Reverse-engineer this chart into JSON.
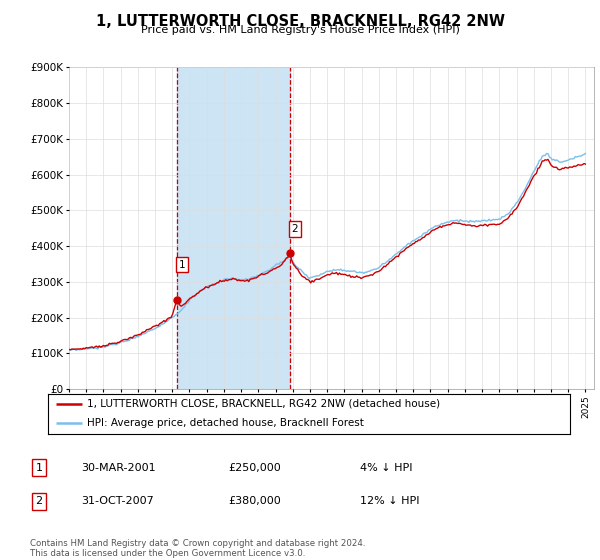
{
  "title": "1, LUTTERWORTH CLOSE, BRACKNELL, RG42 2NW",
  "subtitle": "Price paid vs. HM Land Registry's House Price Index (HPI)",
  "ylim": [
    0,
    900000
  ],
  "xlim_start": 1995.0,
  "xlim_end": 2025.5,
  "sale1_date": 2001.25,
  "sale1_price": 250000,
  "sale1_label": "1",
  "sale2_date": 2007.83,
  "sale2_price": 380000,
  "sale2_label": "2",
  "hpi_color": "#7bbfea",
  "price_color": "#cc0000",
  "sale_marker_color": "#cc0000",
  "dashed_line_color": "#cc0000",
  "highlight_fill": "#cde4f5",
  "background_color": "#ffffff",
  "grid_color": "#dddddd",
  "legend_label_red": "1, LUTTERWORTH CLOSE, BRACKNELL, RG42 2NW (detached house)",
  "legend_label_blue": "HPI: Average price, detached house, Bracknell Forest",
  "table_rows": [
    {
      "num": "1",
      "date": "30-MAR-2001",
      "price": "£250,000",
      "note": "4% ↓ HPI"
    },
    {
      "num": "2",
      "date": "31-OCT-2007",
      "price": "£380,000",
      "note": "12% ↓ HPI"
    }
  ],
  "footnote": "Contains HM Land Registry data © Crown copyright and database right 2024.\nThis data is licensed under the Open Government Licence v3.0.",
  "hpi_keypoints": [
    [
      1995.0,
      108000
    ],
    [
      1996.0,
      112000
    ],
    [
      1997.0,
      118000
    ],
    [
      1998.0,
      130000
    ],
    [
      1999.0,
      148000
    ],
    [
      2000.0,
      170000
    ],
    [
      2001.0,
      200000
    ],
    [
      2001.5,
      220000
    ],
    [
      2002.0,
      248000
    ],
    [
      2002.5,
      268000
    ],
    [
      2003.0,
      285000
    ],
    [
      2003.5,
      295000
    ],
    [
      2004.0,
      305000
    ],
    [
      2004.5,
      308000
    ],
    [
      2005.0,
      305000
    ],
    [
      2005.5,
      308000
    ],
    [
      2006.0,
      318000
    ],
    [
      2006.5,
      330000
    ],
    [
      2007.0,
      345000
    ],
    [
      2007.5,
      360000
    ],
    [
      2007.83,
      372000
    ],
    [
      2008.0,
      355000
    ],
    [
      2008.5,
      330000
    ],
    [
      2009.0,
      310000
    ],
    [
      2009.5,
      318000
    ],
    [
      2010.0,
      330000
    ],
    [
      2010.5,
      335000
    ],
    [
      2011.0,
      332000
    ],
    [
      2011.5,
      328000
    ],
    [
      2012.0,
      325000
    ],
    [
      2012.5,
      330000
    ],
    [
      2013.0,
      340000
    ],
    [
      2013.5,
      358000
    ],
    [
      2014.0,
      378000
    ],
    [
      2014.5,
      398000
    ],
    [
      2015.0,
      415000
    ],
    [
      2015.5,
      430000
    ],
    [
      2016.0,
      448000
    ],
    [
      2016.5,
      460000
    ],
    [
      2017.0,
      468000
    ],
    [
      2017.5,
      472000
    ],
    [
      2018.0,
      470000
    ],
    [
      2018.5,
      468000
    ],
    [
      2019.0,
      470000
    ],
    [
      2019.5,
      472000
    ],
    [
      2020.0,
      475000
    ],
    [
      2020.5,
      490000
    ],
    [
      2021.0,
      520000
    ],
    [
      2021.5,
      560000
    ],
    [
      2022.0,
      610000
    ],
    [
      2022.5,
      650000
    ],
    [
      2022.83,
      660000
    ],
    [
      2023.0,
      645000
    ],
    [
      2023.5,
      635000
    ],
    [
      2024.0,
      640000
    ],
    [
      2024.5,
      650000
    ],
    [
      2025.0,
      658000
    ]
  ],
  "price_keypoints": [
    [
      1995.0,
      110000
    ],
    [
      1996.0,
      115000
    ],
    [
      1997.0,
      122000
    ],
    [
      1998.0,
      133000
    ],
    [
      1999.0,
      152000
    ],
    [
      2000.0,
      175000
    ],
    [
      2001.0,
      205000
    ],
    [
      2001.25,
      250000
    ],
    [
      2001.5,
      230000
    ],
    [
      2002.0,
      252000
    ],
    [
      2002.5,
      270000
    ],
    [
      2003.0,
      285000
    ],
    [
      2003.5,
      295000
    ],
    [
      2004.0,
      305000
    ],
    [
      2004.5,
      308000
    ],
    [
      2005.0,
      302000
    ],
    [
      2005.5,
      305000
    ],
    [
      2006.0,
      315000
    ],
    [
      2006.5,
      325000
    ],
    [
      2007.0,
      338000
    ],
    [
      2007.5,
      355000
    ],
    [
      2007.83,
      380000
    ],
    [
      2008.0,
      350000
    ],
    [
      2008.5,
      320000
    ],
    [
      2009.0,
      300000
    ],
    [
      2009.5,
      308000
    ],
    [
      2010.0,
      320000
    ],
    [
      2010.5,
      325000
    ],
    [
      2011.0,
      320000
    ],
    [
      2011.5,
      315000
    ],
    [
      2012.0,
      312000
    ],
    [
      2012.5,
      318000
    ],
    [
      2013.0,
      330000
    ],
    [
      2013.5,
      350000
    ],
    [
      2014.0,
      370000
    ],
    [
      2014.5,
      390000
    ],
    [
      2015.0,
      408000
    ],
    [
      2015.5,
      422000
    ],
    [
      2016.0,
      440000
    ],
    [
      2016.5,
      452000
    ],
    [
      2017.0,
      460000
    ],
    [
      2017.5,
      465000
    ],
    [
      2018.0,
      460000
    ],
    [
      2018.5,
      455000
    ],
    [
      2019.0,
      458000
    ],
    [
      2019.5,
      460000
    ],
    [
      2020.0,
      462000
    ],
    [
      2020.5,
      478000
    ],
    [
      2021.0,
      508000
    ],
    [
      2021.5,
      548000
    ],
    [
      2022.0,
      595000
    ],
    [
      2022.5,
      635000
    ],
    [
      2022.83,
      645000
    ],
    [
      2023.0,
      625000
    ],
    [
      2023.5,
      615000
    ],
    [
      2024.0,
      618000
    ],
    [
      2024.5,
      625000
    ],
    [
      2025.0,
      630000
    ]
  ]
}
